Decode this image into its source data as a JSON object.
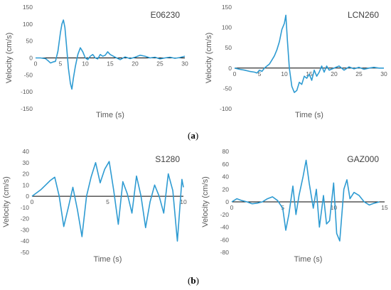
{
  "figure": {
    "panel_a_label": "a",
    "panel_b_label": "b"
  },
  "chart_data": [
    {
      "type": "line",
      "title": "E06230",
      "xlabel": "Time (s)",
      "ylabel": "Velocity (cm/s)",
      "xlim": [
        0,
        30
      ],
      "ylim": [
        -150,
        150
      ],
      "xticks": [
        0,
        5,
        10,
        15,
        20,
        25,
        30
      ],
      "yticks": [
        150,
        100,
        50,
        0,
        -50,
        -100,
        -150
      ],
      "color": "#2E9BD2",
      "series": [
        {
          "x": [
            0,
            1,
            2,
            2.5,
            3,
            3.5,
            4,
            4.5,
            5,
            5.3,
            5.6,
            5.9,
            6.2,
            6.6,
            7,
            7.3,
            7.6,
            8,
            8.5,
            9,
            9.5,
            10,
            10.5,
            11,
            11.5,
            12,
            12.5,
            13,
            13.5,
            14,
            14.5,
            15,
            16,
            17,
            18,
            19,
            20,
            21,
            22,
            23,
            24,
            25,
            26,
            27,
            28,
            29,
            30
          ],
          "y": [
            0,
            0,
            -2,
            -8,
            -15,
            -12,
            -10,
            20,
            75,
            100,
            112,
            90,
            40,
            -30,
            -75,
            -92,
            -60,
            -25,
            10,
            30,
            18,
            0,
            -5,
            5,
            10,
            0,
            -3,
            10,
            5,
            8,
            18,
            10,
            2,
            -5,
            3,
            -2,
            2,
            8,
            5,
            0,
            2,
            -3,
            0,
            2,
            -1,
            1,
            5
          ]
        }
      ]
    },
    {
      "type": "line",
      "title": "LCN260",
      "xlabel": "Time (s)",
      "ylabel": "Velocity (cm/s)",
      "xlim": [
        0,
        30
      ],
      "ylim": [
        -100,
        150
      ],
      "xticks": [
        0,
        5,
        10,
        15,
        20,
        25,
        30
      ],
      "yticks": [
        150,
        100,
        50,
        0,
        -50,
        -100
      ],
      "color": "#2E9BD2",
      "series": [
        {
          "x": [
            0,
            1,
            2,
            3,
            4,
            4.5,
            5,
            5.5,
            6,
            6.5,
            7,
            7.5,
            8,
            8.5,
            9,
            9.5,
            10,
            10.3,
            10.6,
            11,
            11.5,
            12,
            12.5,
            13,
            13.5,
            14,
            14.5,
            15,
            15.5,
            16,
            16.5,
            17,
            17.5,
            18,
            18.5,
            19,
            20,
            21,
            22,
            23,
            24,
            25,
            26,
            27,
            28,
            29,
            30
          ],
          "y": [
            0,
            -3,
            -5,
            -8,
            -10,
            -12,
            -5,
            -8,
            0,
            5,
            10,
            20,
            30,
            45,
            65,
            95,
            110,
            130,
            70,
            0,
            -45,
            -60,
            -55,
            -35,
            -40,
            -20,
            -25,
            -15,
            -30,
            -5,
            -20,
            -10,
            5,
            -10,
            5,
            -5,
            0,
            5,
            -5,
            3,
            -2,
            2,
            -3,
            0,
            2,
            0,
            0
          ]
        }
      ]
    },
    {
      "type": "line",
      "title": "S1280",
      "xlabel": "Time (s)",
      "ylabel": "Velocity (cm/s)",
      "xlim": [
        0,
        10
      ],
      "ylim": [
        -50,
        40
      ],
      "xticks": [
        0,
        5,
        10
      ],
      "yticks": [
        40,
        30,
        20,
        10,
        0,
        -10,
        -20,
        -30,
        -40,
        -50
      ],
      "color": "#2E9BD2",
      "series": [
        {
          "x": [
            0,
            0.3,
            0.6,
            0.9,
            1.2,
            1.5,
            1.8,
            2.1,
            2.4,
            2.7,
            3.0,
            3.3,
            3.6,
            3.9,
            4.2,
            4.5,
            4.8,
            5.1,
            5.4,
            5.7,
            6.0,
            6.3,
            6.6,
            6.9,
            7.2,
            7.5,
            7.8,
            8.1,
            8.4,
            8.7,
            9.0,
            9.3,
            9.6,
            9.9,
            10.0
          ],
          "y": [
            0,
            3,
            6,
            10,
            14,
            17,
            0,
            -27,
            -10,
            8,
            -12,
            -36,
            0,
            17,
            30,
            12,
            24,
            31,
            5,
            -25,
            13,
            2,
            -15,
            18,
            0,
            -28,
            -5,
            10,
            0,
            -15,
            20,
            5,
            -40,
            15,
            8
          ]
        }
      ]
    },
    {
      "type": "line",
      "title": "GAZ000",
      "xlabel": "Time (s)",
      "ylabel": "Velocity (cm/s)",
      "xlim": [
        0,
        15
      ],
      "ylim": [
        -80,
        80
      ],
      "xticks": [
        0,
        5,
        10,
        15
      ],
      "yticks": [
        80,
        60,
        40,
        20,
        0,
        -20,
        -40,
        -60,
        -80
      ],
      "color": "#2E9BD2",
      "series": [
        {
          "x": [
            0,
            0.5,
            1,
            1.5,
            2,
            2.5,
            3,
            3.5,
            4,
            4.5,
            5,
            5.3,
            5.6,
            6,
            6.3,
            6.6,
            7,
            7.3,
            7.6,
            8,
            8.3,
            8.6,
            9,
            9.3,
            9.6,
            10,
            10.3,
            10.6,
            11,
            11.3,
            11.6,
            12,
            12.5,
            13,
            13.5,
            14,
            14.5
          ],
          "y": [
            0,
            5,
            2,
            0,
            -3,
            -2,
            0,
            5,
            8,
            2,
            -10,
            -45,
            -20,
            25,
            -20,
            10,
            40,
            66,
            30,
            -10,
            20,
            -40,
            10,
            -35,
            -30,
            30,
            -50,
            -62,
            20,
            35,
            5,
            15,
            10,
            0,
            -5,
            -2,
            0
          ]
        }
      ]
    }
  ]
}
